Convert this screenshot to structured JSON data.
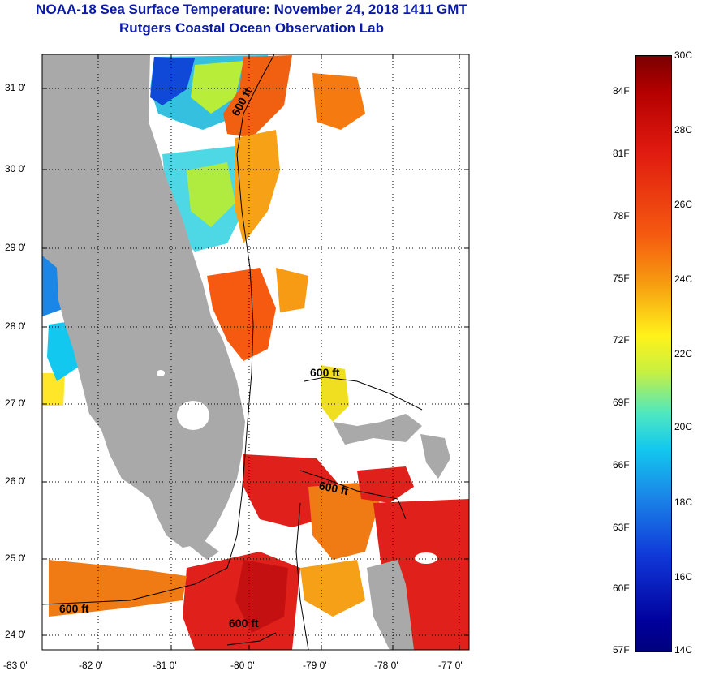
{
  "title": "NOAA-18 Sea Surface Temperature:  November 24, 2018 1411 GMT",
  "subtitle": "Rutgers Coastal Ocean Observation Lab",
  "map": {
    "latitude_labels": [
      "31 0'",
      "30 0'",
      "29 0'",
      "28 0'",
      "27 0'",
      "26 0'",
      "25 0'",
      "24 0'"
    ],
    "longitude_labels": [
      "-83 0'",
      "-82 0'",
      "-81 0'",
      "-80 0'",
      "-79 0'",
      "-78 0'",
      "-77 0'"
    ],
    "contour_labels": [
      "600 ft",
      "600 ft",
      "600 ft",
      "600 ft",
      "600 ft"
    ],
    "colors": {
      "land": "#a9a9a9",
      "nodata": "#ffffff",
      "frame": "#000000"
    }
  },
  "colorbar": {
    "celsius_labels": [
      "30C",
      "28C",
      "26C",
      "24C",
      "22C",
      "20C",
      "18C",
      "16C",
      "14C"
    ],
    "fahrenheit_labels": [
      "84F",
      "81F",
      "78F",
      "75F",
      "72F",
      "69F",
      "66F",
      "63F",
      "60F",
      "57F"
    ]
  }
}
